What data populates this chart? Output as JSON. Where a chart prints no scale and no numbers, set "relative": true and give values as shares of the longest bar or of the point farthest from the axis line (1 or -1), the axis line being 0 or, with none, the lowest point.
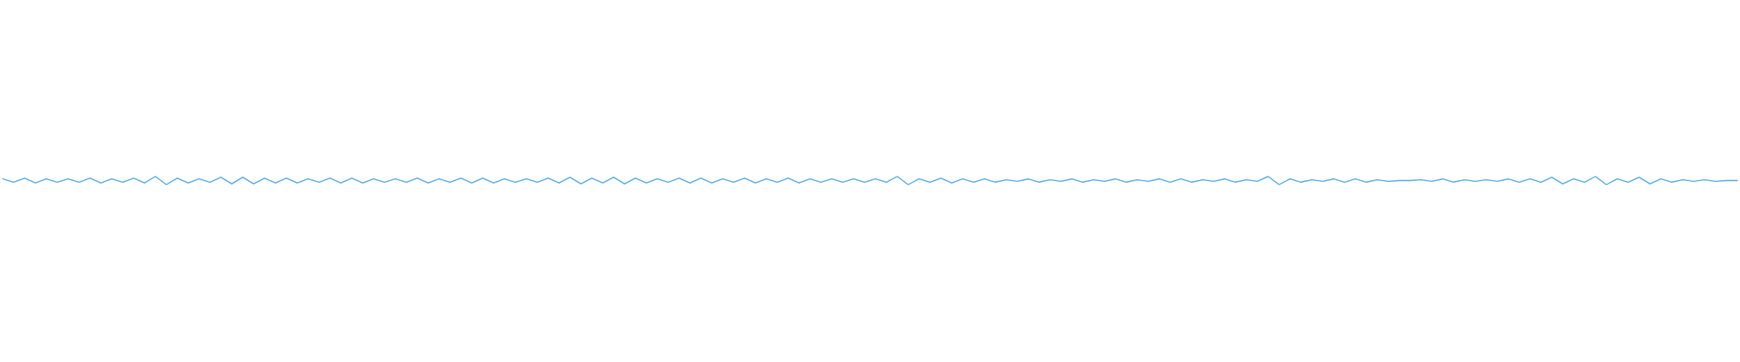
{
  "chart_data": {
    "type": "line",
    "relative": true,
    "color": "#5dade2",
    "categories": [
      null,
      null,
      null,
      null,
      null,
      null,
      null,
      null,
      null,
      null,
      null,
      null,
      null,
      null,
      null,
      null,
      null,
      null,
      null,
      null,
      null,
      null,
      null,
      null,
      null,
      null,
      null,
      null,
      null,
      null,
      null,
      null,
      null,
      null,
      null,
      null,
      null,
      null,
      null,
      null,
      null,
      null,
      null,
      null,
      null,
      null,
      null,
      null,
      null,
      null,
      null,
      null,
      null,
      null,
      null,
      null,
      null,
      null,
      null,
      null,
      null,
      null,
      null,
      null,
      null,
      null,
      null,
      null,
      null,
      null,
      null,
      null,
      null,
      null,
      null,
      null,
      null,
      null,
      null,
      null,
      null,
      null,
      null,
      null,
      null,
      null,
      null,
      null,
      null,
      null,
      null,
      null,
      null,
      null,
      null,
      null,
      null,
      null,
      null,
      null,
      null,
      null,
      null,
      null,
      null,
      null,
      null,
      null,
      null,
      null,
      null,
      null,
      null,
      null,
      null,
      null,
      null,
      null,
      null,
      null,
      null,
      null,
      null,
      null,
      null,
      null,
      null,
      null,
      null,
      null,
      null,
      null,
      null,
      null,
      null,
      null,
      null,
      null,
      null,
      null,
      null,
      null,
      null,
      null,
      null,
      null,
      null,
      null,
      null,
      null,
      null,
      null,
      null,
      null,
      null,
      null,
      null,
      null,
      null,
      null
    ],
    "values": [
      0.7,
      0.3,
      0.8,
      0.2,
      0.7,
      0.3,
      0.7,
      0.3,
      0.8,
      0.2,
      0.7,
      0.3,
      0.8,
      0.2,
      1,
      0,
      0.8,
      0.2,
      0.7,
      0.3,
      0.9,
      0.1,
      0.9,
      0.1,
      0.8,
      0.2,
      0.8,
      0.2,
      0.7,
      0.3,
      0.8,
      0.2,
      0.8,
      0.2,
      0.7,
      0.3,
      0.7,
      0.3,
      0.8,
      0.2,
      0.7,
      0.3,
      0.8,
      0.2,
      0.8,
      0.2,
      0.7,
      0.3,
      0.7,
      0.3,
      0.8,
      0.2,
      0.9,
      0.1,
      0.8,
      0.2,
      0.9,
      0.1,
      0.8,
      0.2,
      0.7,
      0.3,
      0.8,
      0.2,
      0.8,
      0.2,
      0.7,
      0.3,
      0.8,
      0.2,
      0.7,
      0.3,
      0.8,
      0.2,
      0.7,
      0.3,
      0.7,
      0.3,
      0.7,
      0.3,
      0.7,
      0.3,
      1,
      0,
      0.7,
      0.3,
      0.8,
      0.2,
      0.7,
      0.3,
      0.7,
      0.3,
      0.6,
      0.4,
      0.7,
      0.3,
      0.6,
      0.4,
      0.7,
      0.3,
      0.6,
      0.4,
      0.7,
      0.3,
      0.6,
      0.4,
      0.7,
      0.3,
      0.7,
      0.3,
      0.6,
      0.4,
      0.7,
      0.3,
      0.6,
      0.4,
      1,
      0,
      0.7,
      0.3,
      0.6,
      0.4,
      0.7,
      0.3,
      0.7,
      0.3,
      0.6,
      0.4,
      0.5,
      0.5,
      0.6,
      0.4,
      0.7,
      0.3,
      0.6,
      0.4,
      0.6,
      0.4,
      0.7,
      0.3,
      0.7,
      0.3,
      0.9,
      0.1,
      0.7,
      0.3,
      1,
      0,
      0.7,
      0.3,
      0.9,
      0.1,
      0.7,
      0.3,
      0.6,
      0.4,
      0.6,
      0.4,
      0.5,
      0.5
    ]
  }
}
